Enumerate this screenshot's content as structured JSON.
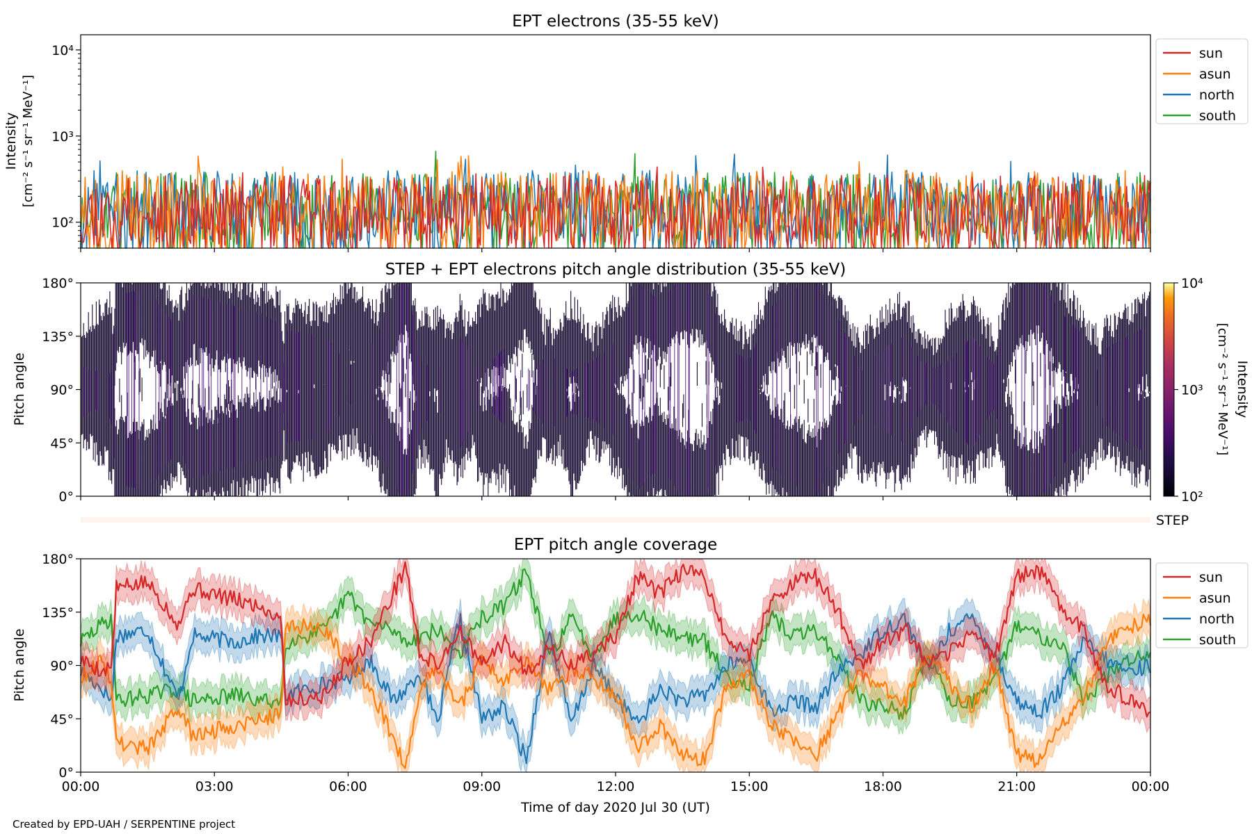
{
  "figure": {
    "credit": "Created by EPD-UAH / SERPENTINE project",
    "xlabel": "Time of day 2020 Jul 30 (UT)",
    "xticks": [
      "00:00",
      "03:00",
      "06:00",
      "09:00",
      "12:00",
      "15:00",
      "18:00",
      "21:00",
      "00:00"
    ],
    "colors": {
      "sun": "#d62728",
      "asun": "#ff7f0e",
      "north": "#1f77b4",
      "south": "#2ca02c"
    }
  },
  "chart_data": [
    {
      "type": "line",
      "title": "EPT electrons (35-55 keV)",
      "ylabel_line1": "Intensity",
      "ylabel_line2": "[cm⁻² s⁻¹ sr⁻¹ MeV⁻¹]",
      "yscale": "log",
      "ylim": [
        50,
        15000
      ],
      "yticks": [
        "10²",
        "10³",
        "10⁴"
      ],
      "ytick_values": [
        100,
        1000,
        10000
      ],
      "xlim_hours": [
        0,
        24
      ],
      "legend": [
        "sun",
        "asun",
        "north",
        "south"
      ],
      "legend_placement": "outside-right-top",
      "series": [
        {
          "name": "sun",
          "color": "#d62728",
          "typical_range": [
            50,
            350
          ],
          "max": 450
        },
        {
          "name": "asun",
          "color": "#ff7f0e",
          "typical_range": [
            60,
            400
          ],
          "max": 600
        },
        {
          "name": "north",
          "color": "#1f77b4",
          "typical_range": [
            60,
            400
          ],
          "max": 650
        },
        {
          "name": "south",
          "color": "#2ca02c",
          "typical_range": [
            60,
            380
          ],
          "max": 750
        }
      ]
    },
    {
      "type": "heatmap",
      "title": "STEP + EPT electrons pitch angle distribution (35-55 keV)",
      "ylabel": "Pitch angle",
      "yticks": [
        "0°",
        "45°",
        "90°",
        "135°",
        "180°"
      ],
      "ytick_values": [
        0,
        45,
        90,
        135,
        180
      ],
      "ylim": [
        0,
        180
      ],
      "colorbar": {
        "label_line1": "Intensity",
        "label_line2": "[cm⁻² s⁻¹ sr⁻¹ MeV⁻¹]",
        "ticks": [
          "10²",
          "10³",
          "10⁴"
        ],
        "range": [
          100,
          10000
        ],
        "scale": "log",
        "colormap": "inferno"
      }
    },
    {
      "type": "heatmap",
      "label": "STEP",
      "note": "empty strip"
    },
    {
      "type": "line",
      "title": "EPT pitch angle coverage",
      "ylabel": "Pitch angle",
      "yticks": [
        "0°",
        "45°",
        "90°",
        "135°",
        "180°"
      ],
      "ytick_values": [
        0,
        45,
        90,
        135,
        180
      ],
      "ylim": [
        0,
        180
      ],
      "legend": [
        "sun",
        "asun",
        "north",
        "south"
      ],
      "legend_placement": "outside-right-top",
      "x_hours": [
        0,
        0.5,
        0.7,
        0.8,
        1.5,
        2.2,
        2.5,
        3.5,
        4.0,
        4.5,
        4.6,
        5.5,
        6.0,
        6.5,
        7.0,
        7.3,
        7.6,
        8.0,
        8.5,
        9.0,
        9.5,
        10.0,
        10.5,
        11.0,
        11.5,
        12.0,
        12.5,
        13.0,
        13.5,
        14.0,
        14.5,
        15.0,
        15.5,
        16.0,
        16.5,
        17.0,
        17.5,
        18.0,
        18.5,
        19.0,
        19.5,
        20.0,
        20.5,
        21.0,
        21.5,
        22.0,
        22.5,
        23.0,
        23.5,
        24.0
      ],
      "series": [
        {
          "name": "sun",
          "color": "#d62728",
          "values": [
            95,
            85,
            90,
            155,
            160,
            125,
            155,
            145,
            140,
            130,
            60,
            65,
            95,
            110,
            150,
            175,
            100,
            90,
            120,
            90,
            110,
            85,
            105,
            90,
            100,
            115,
            165,
            150,
            170,
            165,
            110,
            100,
            145,
            160,
            165,
            135,
            90,
            110,
            120,
            90,
            100,
            120,
            95,
            165,
            170,
            140,
            120,
            75,
            60,
            50
          ]
        },
        {
          "name": "asun",
          "color": "#ff7f0e",
          "values": [
            80,
            95,
            75,
            25,
            20,
            55,
            30,
            40,
            45,
            50,
            125,
            120,
            95,
            70,
            30,
            5,
            70,
            90,
            55,
            95,
            75,
            95,
            70,
            85,
            80,
            65,
            20,
            40,
            15,
            10,
            75,
            80,
            40,
            25,
            15,
            50,
            85,
            70,
            60,
            100,
            75,
            55,
            90,
            15,
            10,
            40,
            60,
            110,
            120,
            130
          ]
        },
        {
          "name": "north",
          "color": "#1f77b4",
          "values": [
            85,
            70,
            60,
            115,
            120,
            60,
            115,
            110,
            115,
            115,
            65,
            75,
            80,
            95,
            60,
            70,
            85,
            40,
            130,
            45,
            55,
            10,
            120,
            40,
            90,
            65,
            40,
            70,
            60,
            65,
            90,
            95,
            50,
            60,
            55,
            85,
            100,
            120,
            130,
            85,
            120,
            130,
            100,
            60,
            50,
            70,
            110,
            95,
            85,
            90
          ]
        },
        {
          "name": "south",
          "color": "#2ca02c",
          "values": [
            110,
            125,
            130,
            60,
            65,
            70,
            60,
            65,
            60,
            60,
            110,
            120,
            150,
            125,
            120,
            110,
            115,
            120,
            100,
            130,
            140,
            170,
            95,
            130,
            100,
            130,
            135,
            120,
            115,
            110,
            80,
            75,
            130,
            115,
            120,
            95,
            60,
            55,
            50,
            100,
            60,
            60,
            75,
            125,
            115,
            110,
            60,
            80,
            95,
            100
          ]
        }
      ]
    }
  ]
}
